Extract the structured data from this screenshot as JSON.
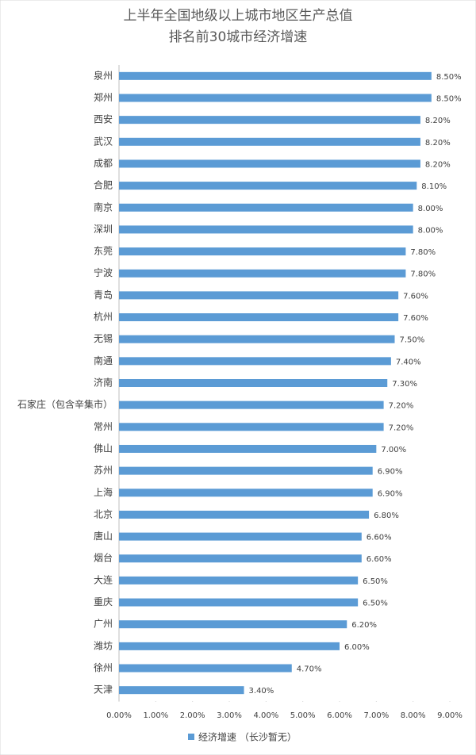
{
  "chart_data": {
    "type": "hbar",
    "title": [
      "上半年全国地级以上城市地区生产总值",
      "排名前30城市经济增速"
    ],
    "categories": [
      "泉州",
      "郑州",
      "西安",
      "武汉",
      "成都",
      "合肥",
      "南京",
      "深圳",
      "东莞",
      "宁波",
      "青岛",
      "杭州",
      "无锡",
      "南通",
      "济南",
      "石家庄（包含辛集市）",
      "常州",
      "佛山",
      "苏州",
      "上海",
      "北京",
      "唐山",
      "烟台",
      "大连",
      "重庆",
      "广州",
      "潍坊",
      "徐州",
      "天津"
    ],
    "series": [
      {
        "name": "经济增速 （长沙暂无）",
        "color": "#5b9bd5",
        "values": [
          8.5,
          8.5,
          8.2,
          8.2,
          8.2,
          8.1,
          8.0,
          8.0,
          7.8,
          7.8,
          7.6,
          7.6,
          7.5,
          7.4,
          7.3,
          7.2,
          7.2,
          7.0,
          6.9,
          6.9,
          6.8,
          6.6,
          6.6,
          6.5,
          6.5,
          6.2,
          6.0,
          4.7,
          3.4
        ],
        "value_labels": [
          "8.50%",
          "8.50%",
          "8.20%",
          "8.20%",
          "8.20%",
          "8.10%",
          "8.00%",
          "8.00%",
          "7.80%",
          "7.80%",
          "7.60%",
          "7.60%",
          "7.50%",
          "7.40%",
          "7.30%",
          "7.20%",
          "7.20%",
          "7.00%",
          "6.90%",
          "6.90%",
          "6.80%",
          "6.60%",
          "6.60%",
          "6.50%",
          "6.50%",
          "6.20%",
          "6.00%",
          "4.70%",
          "3.40%"
        ]
      }
    ],
    "xlim": [
      0,
      9
    ],
    "xticks": [
      {
        "value": 0,
        "label": "0.00%"
      },
      {
        "value": 1,
        "label": "1.00%"
      },
      {
        "value": 2,
        "label": "2.00%"
      },
      {
        "value": 3,
        "label": "3.00%"
      },
      {
        "value": 4,
        "label": "4.00%"
      },
      {
        "value": 5,
        "label": "5.00%"
      },
      {
        "value": 6,
        "label": "6.00%"
      },
      {
        "value": 7,
        "label": "7.00%"
      },
      {
        "value": 8,
        "label": "8.00%"
      },
      {
        "value": 9,
        "label": "9.00%"
      }
    ],
    "grid": false,
    "legend": "bottom"
  }
}
